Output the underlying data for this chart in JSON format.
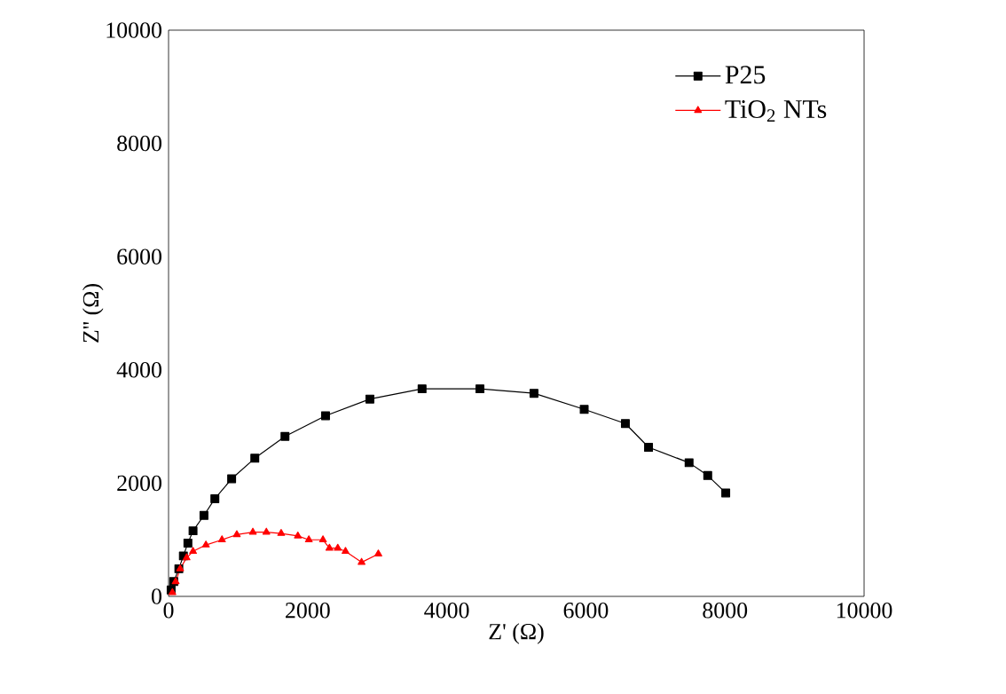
{
  "chart_data": {
    "type": "line",
    "xlabel": "Z' (Ω)",
    "ylabel": "Z'' (Ω)",
    "xlim": [
      0,
      10000
    ],
    "ylim": [
      0,
      10000
    ],
    "xticks": [
      0,
      2000,
      4000,
      6000,
      8000,
      10000
    ],
    "yticks": [
      0,
      2000,
      4000,
      6000,
      8000,
      10000
    ],
    "legend": "top right",
    "grid": false,
    "series": [
      {
        "name": "P25",
        "color": "#000000",
        "marker": "square",
        "x": [
          37,
          74,
          148,
          213,
          278,
          352,
          509,
          666,
          907,
          1240,
          1674,
          2257,
          2895,
          3645,
          4477,
          5254,
          5976,
          6568,
          6901,
          7484,
          7752,
          8011
        ],
        "values": [
          113,
          261,
          488,
          715,
          942,
          1158,
          1430,
          1725,
          2077,
          2440,
          2826,
          3190,
          3485,
          3666,
          3666,
          3587,
          3303,
          3053,
          2633,
          2361,
          2134,
          1827
        ]
      },
      {
        "name": "TiO$_{2}$ NTs",
        "color": "#ff0000",
        "marker": "triangle",
        "x": [
          55,
          102,
          167,
          259,
          352,
          537,
          768,
          981,
          1212,
          1406,
          1619,
          1859,
          2017,
          2220,
          2313,
          2433,
          2544,
          2775,
          3016
        ],
        "values": [
          68,
          261,
          488,
          681,
          795,
          908,
          999,
          1090,
          1135,
          1135,
          1112,
          1067,
          999,
          999,
          851,
          851,
          795,
          602,
          749
        ]
      }
    ]
  }
}
